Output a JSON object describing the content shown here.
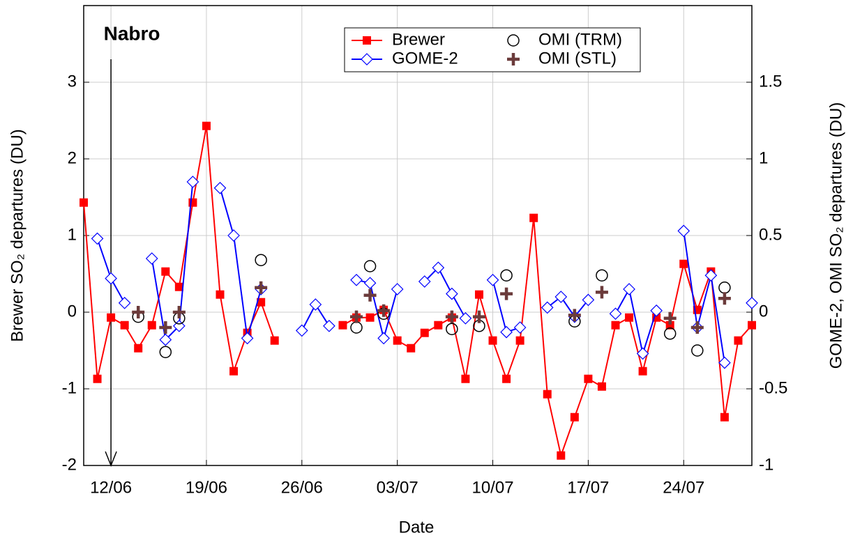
{
  "chart_data": {
    "type": "line",
    "xlabel": "Date",
    "ylabel": "Brewer SO₂ departures (DU)",
    "y2label": "GOME-2, OMI SO₂ departures (DU)",
    "x": [
      "10/06",
      "11/06",
      "12/06",
      "13/06",
      "14/06",
      "15/06",
      "16/06",
      "17/06",
      "18/06",
      "19/06",
      "20/06",
      "21/06",
      "22/06",
      "23/06",
      "24/06",
      "25/06",
      "26/06",
      "27/06",
      "28/06",
      "29/06",
      "30/06",
      "01/07",
      "02/07",
      "03/07",
      "04/07",
      "05/07",
      "06/07",
      "07/07",
      "08/07",
      "09/07",
      "10/07",
      "11/07",
      "12/07",
      "13/07",
      "14/07",
      "15/07",
      "16/07",
      "17/07",
      "18/07",
      "19/07",
      "20/07",
      "21/07",
      "22/07",
      "23/07",
      "24/07",
      "25/07",
      "26/07",
      "27/07",
      "28/07",
      "29/07"
    ],
    "xlim": [
      "10/06",
      "29/07"
    ],
    "xticks": [
      "12/06",
      "19/06",
      "26/06",
      "03/07",
      "10/07",
      "17/07",
      "24/07"
    ],
    "ylim": [
      -2,
      4
    ],
    "yticks": [
      -2,
      -1,
      0,
      1,
      2,
      3
    ],
    "y2lim": [
      -1,
      2
    ],
    "y2ticks": [
      -1,
      -0.5,
      0,
      0.5,
      1,
      1.5
    ],
    "grid": true,
    "legend": "upper center",
    "annotation": {
      "text": "Nabro",
      "x": "12/06"
    },
    "series": [
      {
        "name": "Brewer",
        "color": "#ff0000",
        "marker": "square",
        "line": true,
        "values": [
          1.43,
          -0.87,
          -0.07,
          -0.17,
          -0.47,
          -0.17,
          0.53,
          0.33,
          1.43,
          2.43,
          0.23,
          -0.77,
          -0.27,
          0.13,
          -0.37,
          null,
          null,
          null,
          null,
          -0.17,
          -0.07,
          -0.07,
          0.03,
          -0.37,
          -0.47,
          -0.27,
          -0.17,
          -0.07,
          -0.87,
          0.23,
          -0.37,
          -0.87,
          -0.37,
          1.23,
          -1.07,
          -1.87,
          -1.37,
          -0.87,
          -0.97,
          -0.17,
          -0.07,
          -0.77,
          -0.07,
          -0.17,
          0.63,
          0.03,
          0.53,
          -1.37,
          -0.37,
          -0.17
        ]
      },
      {
        "name": "GOME-2",
        "color": "#0000ff",
        "marker": "diamond",
        "line": true,
        "axis": "y2",
        "values": [
          null,
          0.48,
          0.22,
          0.06,
          null,
          0.35,
          -0.18,
          -0.09,
          0.85,
          null,
          0.81,
          0.5,
          -0.17,
          0.15,
          null,
          null,
          -0.12,
          0.05,
          -0.09,
          null,
          0.21,
          0.19,
          -0.17,
          0.15,
          null,
          0.2,
          0.29,
          0.12,
          -0.04,
          null,
          0.21,
          -0.13,
          -0.1,
          null,
          0.03,
          0.1,
          -0.03,
          0.08,
          null,
          -0.01,
          0.15,
          -0.27,
          0.01,
          null,
          0.53,
          -0.1,
          0.24,
          -0.33,
          null,
          0.06
        ]
      },
      {
        "name": "OMI (TRM)",
        "color": "#000000",
        "marker": "circle",
        "line": false,
        "axis": "y2",
        "values": [
          null,
          null,
          null,
          null,
          -0.03,
          null,
          -0.26,
          -0.04,
          null,
          null,
          null,
          null,
          null,
          0.34,
          null,
          null,
          null,
          null,
          null,
          null,
          -0.1,
          0.3,
          -0.01,
          null,
          null,
          null,
          null,
          -0.11,
          null,
          -0.09,
          null,
          0.24,
          null,
          null,
          null,
          null,
          -0.06,
          null,
          0.24,
          null,
          null,
          null,
          null,
          -0.14,
          null,
          -0.25,
          null,
          0.16,
          null,
          null
        ]
      },
      {
        "name": "OMI (STL)",
        "color": "#6b3b3b",
        "marker": "plus",
        "line": false,
        "axis": "y2",
        "values": [
          null,
          null,
          null,
          null,
          0,
          null,
          -0.1,
          0,
          null,
          null,
          null,
          null,
          null,
          0.16,
          null,
          null,
          null,
          null,
          null,
          null,
          -0.03,
          0.11,
          0.01,
          null,
          null,
          null,
          null,
          -0.03,
          null,
          -0.03,
          null,
          0.12,
          null,
          null,
          null,
          null,
          -0.02,
          null,
          0.13,
          null,
          null,
          null,
          null,
          -0.04,
          null,
          -0.1,
          null,
          0.09,
          null,
          null
        ]
      }
    ]
  }
}
